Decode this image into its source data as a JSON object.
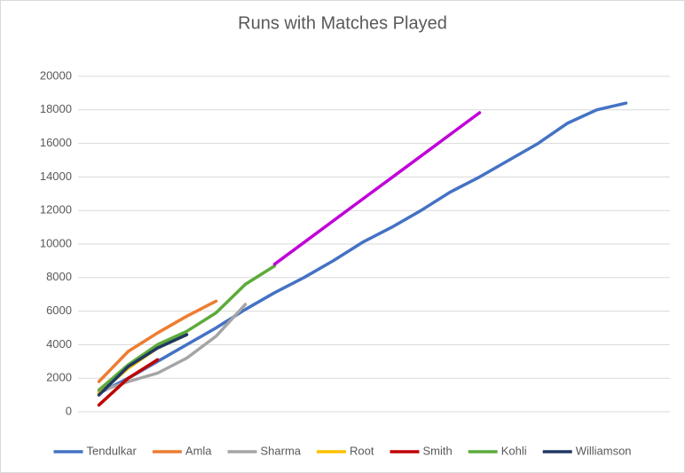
{
  "chart_data": {
    "type": "line",
    "title": "Runs with Matches Played",
    "categories": [
      null,
      null,
      null,
      null,
      null,
      null,
      null,
      null,
      null,
      null,
      null,
      null,
      null,
      null,
      null,
      null,
      null,
      null,
      null,
      null
    ],
    "series": [
      {
        "name": "Tendulkar",
        "color": "#4472c4",
        "values": [
          1100,
          2000,
          3000,
          4000,
          5000,
          6100,
          7100,
          8000,
          9000,
          10100,
          11000,
          12000,
          13100,
          14000,
          15000,
          16000,
          17200,
          18000,
          18400,
          null
        ]
      },
      {
        "name": "Amla",
        "color": "#ed7d31",
        "values": [
          1800,
          3600,
          4700,
          5700,
          6600,
          null,
          null,
          null,
          null,
          null,
          null,
          null,
          null,
          null,
          null,
          null,
          null,
          null,
          null,
          null
        ]
      },
      {
        "name": "Sharma",
        "color": "#a5a5a5",
        "values": [
          1200,
          1800,
          2300,
          3200,
          4500,
          6400,
          null,
          null,
          null,
          null,
          null,
          null,
          null,
          null,
          null,
          null,
          null,
          null,
          null,
          null
        ]
      },
      {
        "name": "Root",
        "color": "#ffc000",
        "values": [
          1100,
          2600,
          3800,
          4600,
          null,
          null,
          null,
          null,
          null,
          null,
          null,
          null,
          null,
          null,
          null,
          null,
          null,
          null,
          null,
          null
        ]
      },
      {
        "name": "Smith",
        "color": "#c00000",
        "values": [
          400,
          2000,
          3100,
          null,
          null,
          null,
          null,
          null,
          null,
          null,
          null,
          null,
          null,
          null,
          null,
          null,
          null,
          null,
          null,
          null
        ]
      },
      {
        "name": "Kohli",
        "color": "#5cab3a",
        "values": [
          1300,
          2800,
          4000,
          4800,
          5900,
          7600,
          8700,
          null,
          null,
          null,
          null,
          null,
          null,
          null,
          null,
          null,
          null,
          null,
          null,
          null
        ]
      },
      {
        "name": "Williamson",
        "color": "#203864",
        "values": [
          1000,
          2700,
          3800,
          4600,
          null,
          null,
          null,
          null,
          null,
          null,
          null,
          null,
          null,
          null,
          null,
          null,
          null,
          null,
          null,
          null
        ]
      },
      {
        "color": "#c000d8",
        "values": [
          null,
          null,
          null,
          null,
          null,
          null,
          8800,
          10090,
          11380,
          12670,
          13960,
          15250,
          16540,
          17830,
          null,
          null,
          null,
          null,
          null,
          null
        ]
      }
    ],
    "ylim": [
      0,
      20000
    ],
    "yticks": [
      0,
      2000,
      4000,
      6000,
      8000,
      10000,
      12000,
      14000,
      16000,
      18000,
      20000
    ],
    "grid": true
  }
}
